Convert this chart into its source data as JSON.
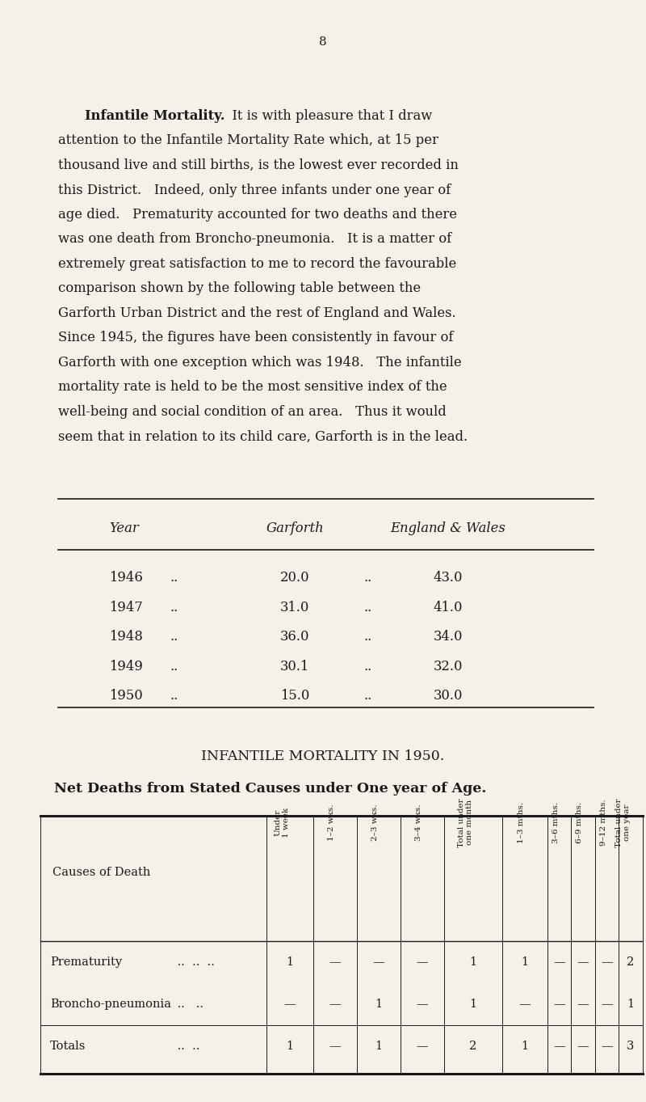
{
  "bg_color": "#f5f0e8",
  "text_color": "#1a1a1a",
  "page_number": "8",
  "para_line1_bold": "Infantile Mortality.",
  "para_line1_rest": "  It is with pleasure that I draw",
  "para_lines": [
    "attention to the Infantile Mortality Rate which, at 15 per",
    "thousand live and still births, is the lowest ever recorded in",
    "this District.   Indeed, only three infants under one year of",
    "age died.   Prematurity accounted for two deaths and there",
    "was one death from Broncho-pneumonia.   It is a matter of",
    "extremely great satisfaction to me to record the favourable",
    "comparison shown by the following table between the",
    "Garforth Urban District and the rest of England and Wales.",
    "Since 1945, the figures have been consistently in favour of",
    "Garforth with one exception which was 1948.   The infantile",
    "mortality rate is held to be the most sensitive index of the",
    "well-being and social condition of an area.   Thus it would",
    "seem that in relation to its child care, Garforth is in the lead."
  ],
  "table1_rows": [
    [
      "1946",
      "..",
      "20.0",
      "..",
      "43.0"
    ],
    [
      "1947",
      "..",
      "31.0",
      "..",
      "41.0"
    ],
    [
      "1948",
      "..",
      "36.0",
      "..",
      "34.0"
    ],
    [
      "1949",
      "..",
      "30.1",
      "..",
      "32.0"
    ],
    [
      "1950",
      "..",
      "15.0",
      "..",
      "30.0"
    ]
  ],
  "section_title": "INFANTILE MORTALITY IN 1950.",
  "section_subtitle": "Net Deaths from Stated Causes under One year of Age.",
  "table2_col_headers": [
    "Under\n1 week",
    "1–2 wks.",
    "2–3 wks.",
    "3–4 wks.",
    "Total under\none month",
    "1–3 mths.",
    "3–6 mths.",
    "6–9 mths.",
    "9–12 mths.",
    "Total under\none year"
  ],
  "table2_data": [
    [
      "1",
      "—",
      "—",
      "—",
      "1",
      "1",
      "—",
      "—",
      "—",
      "2"
    ],
    [
      "—",
      "—",
      "1",
      "—",
      "1",
      "—",
      "—",
      "—",
      "—",
      "1"
    ],
    [
      "1",
      "—",
      "1",
      "—",
      "2",
      "1",
      "—",
      "—",
      "—",
      "3"
    ]
  ],
  "table2_row_labels": [
    "Prematurity",
    "Broncho-pneumonia",
    "Totals"
  ],
  "table2_row_dots": [
    " ..  ..  ..",
    " ..   ..",
    " ..  .."
  ]
}
